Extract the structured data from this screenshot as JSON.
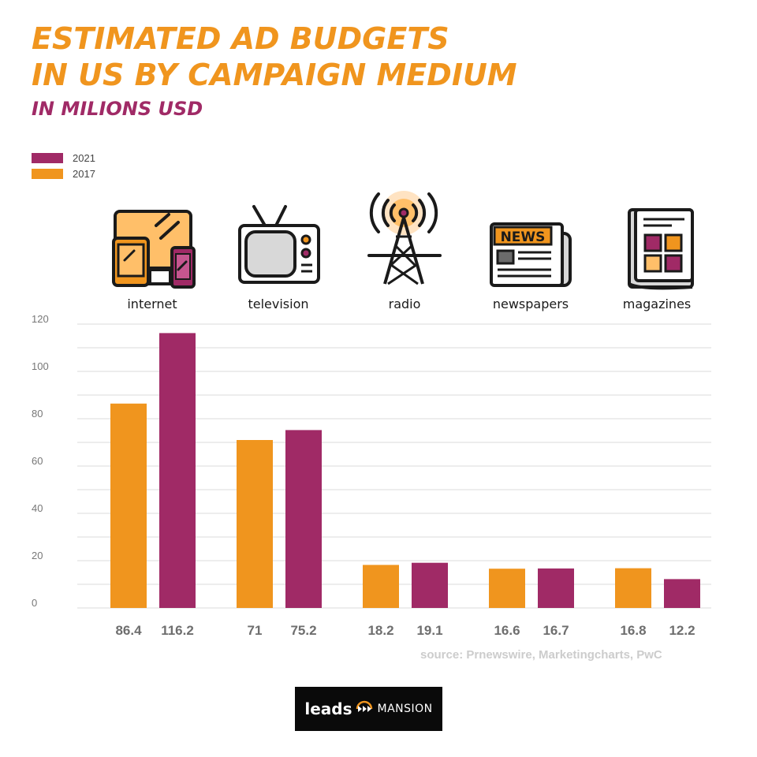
{
  "chart_data": {
    "type": "bar",
    "title": "ESTIMATED AD BUDGETS IN US BY CAMPAIGN MEDIUM",
    "title_lines": [
      "ESTIMATED AD BUDGETS",
      "IN US BY CAMPAIGN MEDIUM"
    ],
    "subtitle": "IN MILIONS USD",
    "categories": [
      "internet",
      "television",
      "radio",
      "newspapers",
      "magazines"
    ],
    "series": [
      {
        "name": "2017",
        "color": "#f0951e",
        "values": [
          86.4,
          71,
          18.2,
          16.6,
          16.8
        ]
      },
      {
        "name": "2021",
        "color": "#a02a66",
        "values": [
          116.2,
          75.2,
          19.1,
          16.7,
          12.2
        ]
      }
    ],
    "data_labels": [
      [
        "86.4",
        "116.2"
      ],
      [
        "71",
        "75.2"
      ],
      [
        "18.2",
        "19.1"
      ],
      [
        "16.6",
        "16.7"
      ],
      [
        "16.8",
        "12.2"
      ]
    ],
    "legend": [
      {
        "label": "2021",
        "color": "#a02a66"
      },
      {
        "label": "2017",
        "color": "#f0951e"
      }
    ],
    "legend_position": "top-left",
    "ylim": [
      0,
      120
    ],
    "yticks": [
      0,
      20,
      40,
      60,
      80,
      100,
      120
    ],
    "grid": true,
    "source": "source: Prnewswire, Marketingcharts, PwC"
  },
  "icons": [
    {
      "category": "internet",
      "icon": "devices-icon"
    },
    {
      "category": "television",
      "icon": "tv-icon"
    },
    {
      "category": "radio",
      "icon": "radio-tower-icon"
    },
    {
      "category": "newspapers",
      "icon": "newspaper-icon",
      "text": "NEWS"
    },
    {
      "category": "magazines",
      "icon": "magazine-icon"
    }
  ],
  "logo": {
    "left": "leads",
    "right": "MANSION"
  }
}
